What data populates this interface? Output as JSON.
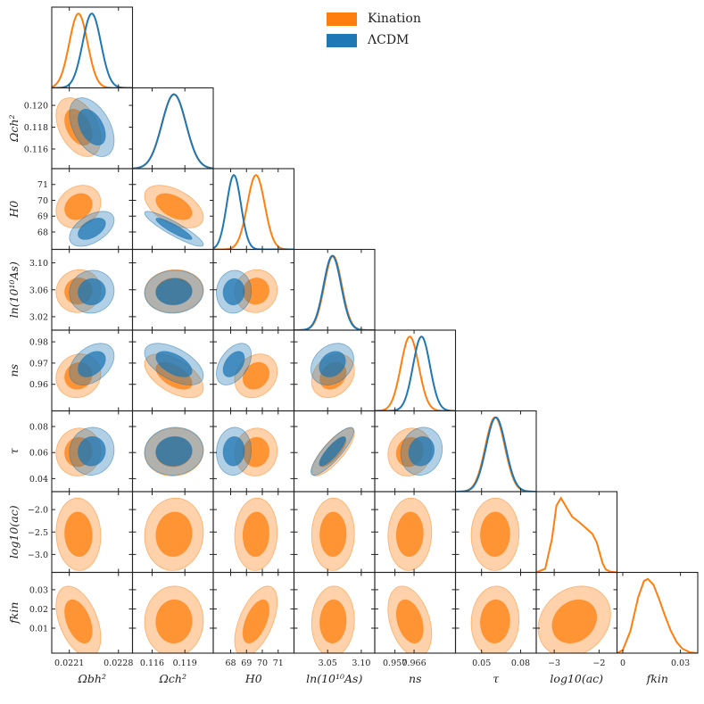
{
  "chart_data": {
    "type": "corner-plot",
    "title": "",
    "legend": {
      "position": "top-right",
      "entries": [
        {
          "name": "Kination",
          "color": "#ff7f0e"
        },
        {
          "name": "ΛCDM",
          "color": "#1f77b4"
        }
      ]
    },
    "parameters": [
      {
        "key": "omegab",
        "xlabel": "Ωbh²",
        "ylabel": "Ωbh²",
        "range": [
          0.02185,
          0.023
        ],
        "xticks": [
          0.0221,
          0.0228
        ],
        "xtick_labels": [
          "0.0221",
          "0.0228"
        ],
        "yticks": [],
        "ytick_labels": []
      },
      {
        "key": "omegac",
        "xlabel": "Ωch²",
        "ylabel": "Ωch²",
        "range": [
          0.1142,
          0.1216
        ],
        "xticks": [
          0.116,
          0.119
        ],
        "xtick_labels": [
          "0.116",
          "0.119"
        ],
        "yticks": [
          0.116,
          0.118,
          0.12
        ],
        "ytick_labels": [
          "0.116",
          "0.118",
          "0.120"
        ]
      },
      {
        "key": "H0",
        "xlabel": "H0",
        "ylabel": "H0",
        "range": [
          66.9,
          72.0
        ],
        "xticks": [
          68,
          69,
          70,
          71
        ],
        "xtick_labels": [
          "68",
          "69",
          "70",
          "71"
        ],
        "yticks": [
          68,
          69,
          70,
          71
        ],
        "ytick_labels": [
          "68",
          "69",
          "70",
          "71"
        ]
      },
      {
        "key": "lnAs",
        "xlabel": "ln(10¹⁰As)",
        "ylabel": "ln(10¹⁰As)",
        "range": [
          3.0,
          3.12
        ],
        "xticks": [
          3.05,
          3.1
        ],
        "xtick_labels": [
          "3.05",
          "3.10"
        ],
        "yticks": [
          3.02,
          3.06,
          3.1
        ],
        "ytick_labels": [
          "3.02",
          "3.06",
          "3.10"
        ]
      },
      {
        "key": "ns",
        "xlabel": "ns",
        "ylabel": "ns",
        "range": [
          0.9475,
          0.9855
        ],
        "xticks": [
          0.957,
          0.966
        ],
        "xtick_labels": [
          "0.957",
          "0.966"
        ],
        "yticks": [
          0.96,
          0.97,
          0.98
        ],
        "ytick_labels": [
          "0.96",
          "0.97",
          "0.98"
        ]
      },
      {
        "key": "tau",
        "xlabel": "τ",
        "ylabel": "τ",
        "range": [
          0.03,
          0.092
        ],
        "xticks": [
          0.05,
          0.08
        ],
        "xtick_labels": [
          "0.05",
          "0.08"
        ],
        "yticks": [
          0.04,
          0.06,
          0.08
        ],
        "ytick_labels": [
          "0.04",
          "0.06",
          "0.08"
        ]
      },
      {
        "key": "logac",
        "xlabel": "log10(ac)",
        "ylabel": "log10(ac)",
        "range": [
          -3.4,
          -1.6
        ],
        "xticks": [
          -3,
          -2
        ],
        "xtick_labels": [
          "−3",
          "−2"
        ],
        "yticks": [
          -3.0,
          -2.5,
          -2.0
        ],
        "ytick_labels": [
          "−3.0",
          "−2.5",
          "−2.0"
        ]
      },
      {
        "key": "fkin",
        "xlabel": "fkin",
        "ylabel": "fkin",
        "range": [
          -0.003,
          0.039
        ],
        "xticks": [
          0.0,
          0.03
        ],
        "xtick_labels": [
          "0",
          "0.03"
        ],
        "yticks": [
          0.01,
          0.02,
          0.03
        ],
        "ytick_labels": [
          "0.01",
          "0.02",
          "0.03"
        ]
      }
    ],
    "series": [
      {
        "name": "Kination",
        "mean": [
          0.02223,
          0.118,
          69.6,
          3.058,
          0.964,
          0.0604,
          -2.55,
          0.0135
        ],
        "sigma": [
          0.00013,
          0.0011,
          0.55,
          0.013,
          0.0042,
          0.0075,
          0.33,
          0.0075
        ]
      },
      {
        "name": "ΛCDM",
        "mean": [
          0.02242,
          0.118,
          68.2,
          3.057,
          0.9695,
          0.061,
          null,
          null
        ],
        "sigma": [
          0.00013,
          0.0011,
          0.45,
          0.013,
          0.004,
          0.0075,
          null,
          null
        ]
      }
    ],
    "correlations": {
      "Kination": [
        [
          1.0,
          -0.4,
          0.2,
          0.05,
          0.1,
          0.05,
          -0.05,
          -0.45
        ],
        [
          -0.4,
          1.0,
          -0.5,
          0.05,
          -0.55,
          0.05,
          0.05,
          0.02
        ],
        [
          0.2,
          -0.5,
          1.0,
          0.05,
          0.2,
          0.05,
          0.05,
          0.55
        ],
        [
          0.05,
          0.05,
          0.05,
          1.0,
          0.25,
          0.8,
          0.02,
          0.05
        ],
        [
          0.1,
          -0.55,
          0.2,
          0.25,
          1.0,
          0.1,
          0.05,
          -0.35
        ],
        [
          0.05,
          0.05,
          0.05,
          0.8,
          0.1,
          1.0,
          0.02,
          0.05
        ],
        [
          -0.05,
          0.05,
          0.05,
          0.02,
          0.05,
          0.02,
          1.0,
          0.2
        ],
        [
          -0.45,
          0.02,
          0.55,
          0.05,
          -0.35,
          0.05,
          0.2,
          1.0
        ]
      ],
      "ΛCDM": [
        [
          1.0,
          -0.45,
          0.5,
          0.05,
          0.4,
          0.05,
          0,
          0
        ],
        [
          -0.45,
          1.0,
          -0.9,
          0.05,
          -0.55,
          0.05,
          0,
          0
        ],
        [
          0.5,
          -0.9,
          1.0,
          0.05,
          0.45,
          0.05,
          0,
          0
        ],
        [
          0.05,
          0.05,
          0.05,
          1.0,
          0.25,
          0.85,
          0,
          0
        ],
        [
          0.4,
          -0.55,
          0.45,
          0.25,
          1.0,
          0.1,
          0,
          0
        ],
        [
          0.05,
          0.05,
          0.05,
          0.85,
          0.1,
          1.0,
          0,
          0
        ],
        [
          0,
          0,
          0,
          0,
          0,
          0,
          1.0,
          0
        ],
        [
          0,
          0,
          0,
          0,
          0,
          0,
          0,
          1.0
        ]
      ]
    },
    "marginal_shapes": {
      "logac": {
        "x": [
          -3.4,
          -3.2,
          -3.05,
          -2.95,
          -2.85,
          -2.75,
          -2.6,
          -2.45,
          -2.3,
          -2.15,
          -2.05,
          -1.98,
          -1.92,
          -1.85,
          -1.75,
          -1.6
        ],
        "y": [
          0.0,
          0.05,
          0.45,
          0.9,
          1.0,
          0.9,
          0.75,
          0.68,
          0.6,
          0.52,
          0.4,
          0.25,
          0.12,
          0.04,
          0.01,
          0.0
        ]
      },
      "fkin": {
        "x": [
          -0.003,
          0.0,
          0.004,
          0.008,
          0.011,
          0.013,
          0.016,
          0.019,
          0.022,
          0.025,
          0.028,
          0.031,
          0.035,
          0.039
        ],
        "y": [
          0.0,
          0.04,
          0.3,
          0.75,
          0.97,
          1.0,
          0.92,
          0.72,
          0.5,
          0.3,
          0.15,
          0.06,
          0.01,
          0.0
        ]
      }
    },
    "contour_levels": [
      "68%",
      "95%"
    ]
  }
}
